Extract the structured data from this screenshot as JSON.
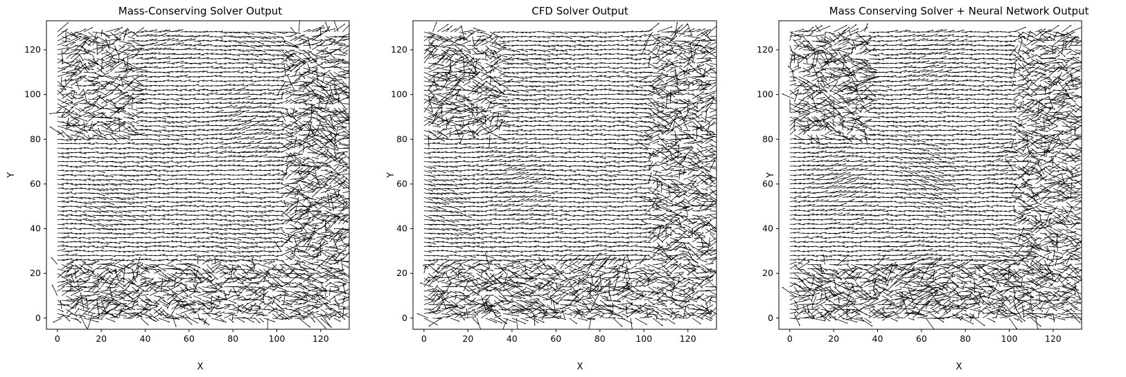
{
  "chart_data": [
    {
      "type": "quiver",
      "title": "Mass-Conserving Solver Output",
      "xlabel": "X",
      "ylabel": "Y",
      "xlim": [
        -5,
        133
      ],
      "ylim": [
        -5,
        133
      ],
      "xticks": [
        0,
        20,
        40,
        60,
        80,
        100,
        120
      ],
      "yticks": [
        0,
        20,
        40,
        60,
        80,
        100,
        120
      ],
      "grid": false,
      "field": {
        "x_range": [
          0,
          130
        ],
        "y_range": [
          0,
          129
        ],
        "step": 2,
        "dominant_direction": "east"
      }
    },
    {
      "type": "quiver",
      "title": "CFD Solver Output",
      "xlabel": "X",
      "ylabel": "Y",
      "xlim": [
        -5,
        133
      ],
      "ylim": [
        -5,
        133
      ],
      "xticks": [
        0,
        20,
        40,
        60,
        80,
        100,
        120
      ],
      "yticks": [
        0,
        20,
        40,
        60,
        80,
        100,
        120
      ],
      "grid": false,
      "field": {
        "x_range": [
          0,
          130
        ],
        "y_range": [
          0,
          129
        ],
        "step": 2,
        "dominant_direction": "east"
      }
    },
    {
      "type": "quiver",
      "title": "Mass Conserving Solver + Neural Network Output",
      "xlabel": "X",
      "ylabel": "Y",
      "xlim": [
        -5,
        133
      ],
      "ylim": [
        -5,
        133
      ],
      "xticks": [
        0,
        20,
        40,
        60,
        80,
        100,
        120
      ],
      "yticks": [
        0,
        20,
        40,
        60,
        80,
        100,
        120
      ],
      "grid": false,
      "field": {
        "x_range": [
          0,
          130
        ],
        "y_range": [
          0,
          129
        ],
        "step": 2,
        "dominant_direction": "east"
      }
    }
  ],
  "colors": {
    "arrow": "#000000",
    "axes": "#000000",
    "background": "#ffffff"
  }
}
